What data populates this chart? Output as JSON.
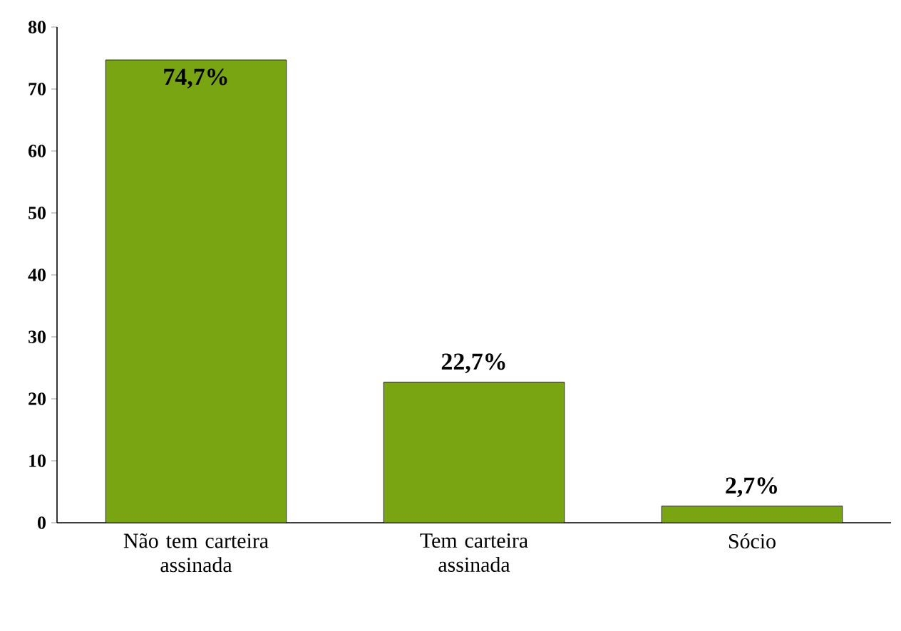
{
  "chart_data": {
    "type": "bar",
    "categories": [
      "Não tem carteira assinada",
      "Tem carteira assinada",
      "Sócio"
    ],
    "values": [
      74.7,
      22.7,
      2.7
    ],
    "value_labels": [
      "74,7%",
      "22,7%",
      "2,7%"
    ],
    "color": "#7aa512",
    "ylim": [
      0,
      80
    ],
    "yticks": [
      0,
      10,
      20,
      30,
      40,
      50,
      60,
      70,
      80
    ],
    "grid": false
  }
}
